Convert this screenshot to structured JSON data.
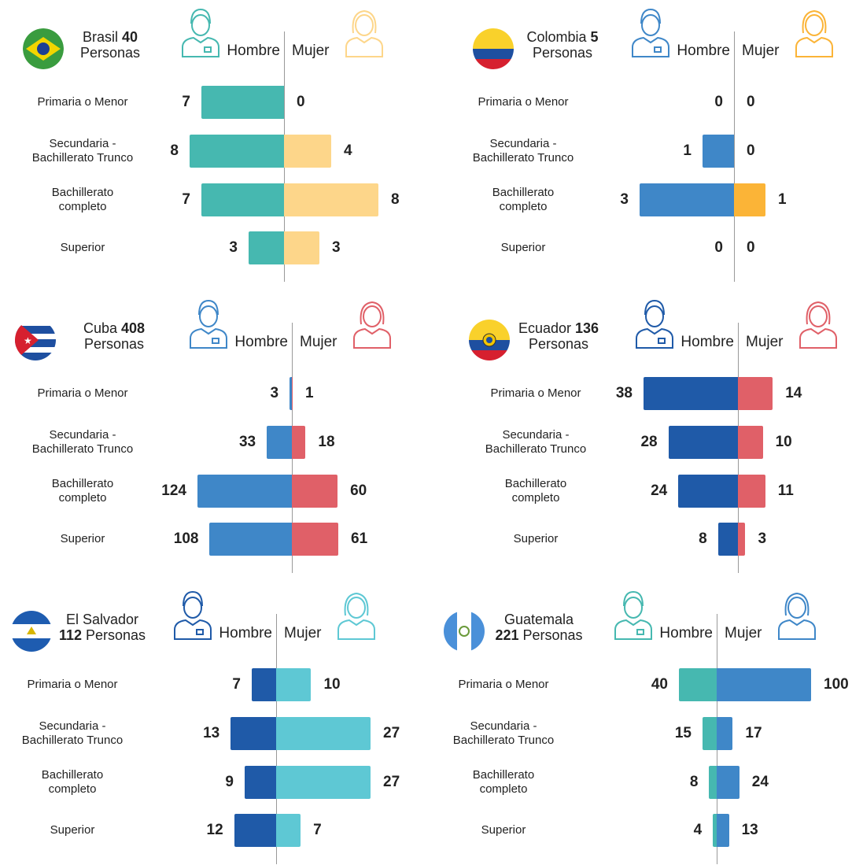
{
  "chart_data": [
    {
      "type": "butterfly",
      "title": {
        "name": "Brasil",
        "count": 40,
        "unit": "Personas"
      },
      "categories": [
        "Primaria o Menor",
        "Secundaria -\nBachillerato Trunco",
        "Bachillerato\ncompleto",
        "Superior"
      ],
      "series": [
        {
          "name": "Hombre",
          "color": "#46b8b0",
          "values": [
            7,
            8,
            7,
            3
          ]
        },
        {
          "name": "Mujer",
          "color": "#fdd68a",
          "values": [
            0,
            4,
            8,
            3
          ]
        }
      ]
    },
    {
      "type": "butterfly",
      "title": {
        "name": "Colombia",
        "count": 5,
        "unit": "Personas"
      },
      "categories": [
        "Primaria o Menor",
        "Secundaria -\nBachillerato Trunco",
        "Bachillerato\ncompleto",
        "Superior"
      ],
      "series": [
        {
          "name": "Hombre",
          "color": "#3f87c8",
          "values": [
            0,
            1,
            3,
            0
          ]
        },
        {
          "name": "Mujer",
          "color": "#fbb437",
          "values": [
            0,
            0,
            1,
            0
          ]
        }
      ]
    },
    {
      "type": "butterfly",
      "title": {
        "name": "Cuba",
        "count": 408,
        "unit": "Personas"
      },
      "categories": [
        "Primaria o Menor",
        "Secundaria -\nBachillerato Trunco",
        "Bachillerato\ncompleto",
        "Superior"
      ],
      "series": [
        {
          "name": "Hombre",
          "color": "#3f87c8",
          "values": [
            3,
            33,
            124,
            108
          ]
        },
        {
          "name": "Mujer",
          "color": "#e06068",
          "values": [
            1,
            18,
            60,
            61
          ]
        }
      ]
    },
    {
      "type": "butterfly",
      "title": {
        "name": "Ecuador",
        "count": 136,
        "unit": "Personas"
      },
      "categories": [
        "Primaria o Menor",
        "Secundaria -\nBachillerato Trunco",
        "Bachillerato\ncompleto",
        "Superior"
      ],
      "series": [
        {
          "name": "Hombre",
          "color": "#1f5aa8",
          "values": [
            38,
            28,
            24,
            8
          ]
        },
        {
          "name": "Mujer",
          "color": "#e06068",
          "values": [
            14,
            10,
            11,
            3
          ]
        }
      ]
    },
    {
      "type": "butterfly",
      "title": {
        "name": "El Salvador",
        "count": 112,
        "unit": "Personas"
      },
      "categories": [
        "Primaria o Menor",
        "Secundaria -\nBachillerato Trunco",
        "Bachillerato\ncompleto",
        "Superior"
      ],
      "series": [
        {
          "name": "Hombre",
          "color": "#1f5aa8",
          "values": [
            7,
            13,
            9,
            12
          ]
        },
        {
          "name": "Mujer",
          "color": "#5ec8d4",
          "values": [
            10,
            27,
            27,
            7
          ]
        }
      ]
    },
    {
      "type": "butterfly",
      "title": {
        "name": "Guatemala",
        "count": 221,
        "unit": "Personas"
      },
      "categories": [
        "Primaria o Menor",
        "Secundaria -\nBachillerato Trunco",
        "Bachillerato\ncompleto",
        "Superior"
      ],
      "series": [
        {
          "name": "Hombre",
          "color": "#46b8b0",
          "values": [
            40,
            15,
            8,
            4
          ]
        },
        {
          "name": "Mujer",
          "color": "#3f87c8",
          "values": [
            100,
            17,
            24,
            13
          ]
        }
      ]
    }
  ]
}
